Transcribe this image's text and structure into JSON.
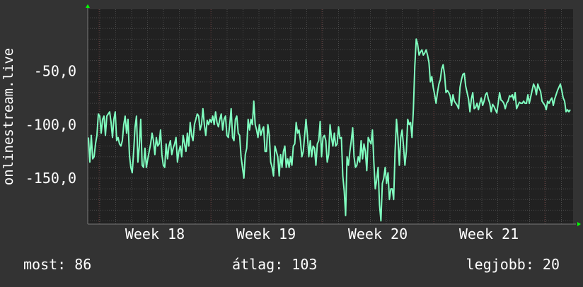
{
  "chart_data": {
    "type": "line",
    "ylabel": "onlinestream.live",
    "ylim": [
      -193,
      8
    ],
    "y_ticks": [
      -50,
      -100,
      -150
    ],
    "y_tick_labels": [
      "-50,0",
      "-100,0",
      "-150,0"
    ],
    "x_ticks": [
      "Week 18",
      "Week 19",
      "Week 20",
      "Week 21"
    ],
    "grid": true,
    "colors": {
      "background": "#333333",
      "plot_background": "#212121",
      "grid": "#4a4a4a",
      "grid_major": "#5a3030",
      "line": "#80ffc0",
      "axis": "#7a7a7a",
      "arrow": "#00ff00"
    },
    "series": [
      {
        "values": [
          -112,
          -135,
          -110,
          -132,
          -130,
          -118,
          -110,
          -90,
          -92,
          -108,
          -95,
          -92,
          -110,
          -92,
          -90,
          -88,
          -98,
          -112,
          -95,
          -88,
          -115,
          -112,
          -118,
          -120,
          -115,
          -100,
          -92,
          -108,
          -95,
          -128,
          -140,
          -145,
          -125,
          -102,
          -92,
          -135,
          -120,
          -95,
          -138,
          -140,
          -122,
          -140,
          -132,
          -125,
          -118,
          -108,
          -115,
          -128,
          -112,
          -120,
          -118,
          -105,
          -128,
          -138,
          -140,
          -118,
          -132,
          -120,
          -115,
          -128,
          -122,
          -118,
          -112,
          -135,
          -125,
          -120,
          -130,
          -110,
          -118,
          -125,
          -108,
          -120,
          -98,
          -110,
          -115,
          -100,
          -95,
          -90,
          -92,
          -105,
          -100,
          -85,
          -100,
          -110,
          -96,
          -100,
          -95,
          -98,
          -92,
          -100,
          -88,
          -98,
          -102,
          -95,
          -90,
          -105,
          -95,
          -92,
          -110,
          -112,
          -100,
          -85,
          -112,
          -115,
          -95,
          -92,
          -108,
          -110,
          -130,
          -140,
          -150,
          -128,
          -122,
          -95,
          -105,
          -95,
          -100,
          -78,
          -100,
          -105,
          -112,
          -100,
          -110,
          -105,
          -102,
          -125,
          -125,
          -100,
          -110,
          -135,
          -140,
          -148,
          -120,
          -125,
          -130,
          -148,
          -128,
          -140,
          -125,
          -120,
          -140,
          -132,
          -140,
          -130,
          -138,
          -120,
          -118,
          -98,
          -108,
          -105,
          -115,
          -130,
          -125,
          -110,
          -95,
          -110,
          -130,
          -115,
          -130,
          -120,
          -122,
          -138,
          -118,
          -115,
          -97,
          -130,
          -112,
          -110,
          -115,
          -135,
          -128,
          -100,
          -112,
          -120,
          -108,
          -120,
          -118,
          -102,
          -113,
          -112,
          -148,
          -162,
          -185,
          -130,
          -138,
          -125,
          -115,
          -103,
          -130,
          -140,
          -138,
          -130,
          -135,
          -115,
          -132,
          -118,
          -125,
          -143,
          -112,
          -115,
          -118,
          -105,
          -135,
          -160,
          -152,
          -140,
          -175,
          -190,
          -155,
          -150,
          -140,
          -155,
          -145,
          -170,
          -160,
          -160,
          -170,
          -125,
          -95,
          -112,
          -138,
          -112,
          -105,
          -120,
          -138,
          -125,
          -95,
          -100,
          -98,
          -112,
          -85,
          -45,
          -20,
          -25,
          -35,
          -32,
          -30,
          -35,
          -33,
          -30,
          -35,
          -42,
          -60,
          -55,
          -65,
          -72,
          -80,
          -70,
          -62,
          -58,
          -48,
          -44,
          -53,
          -70,
          -68,
          -70,
          -73,
          -82,
          -72,
          -78,
          -80,
          -82,
          -85,
          -65,
          -58,
          -53,
          -52,
          -64,
          -70,
          -76,
          -88,
          -76,
          -70,
          -85,
          -84,
          -80,
          -86,
          -80,
          -75,
          -82,
          -78,
          -72,
          -70,
          -76,
          -80,
          -88,
          -81,
          -83,
          -86,
          -89,
          -80,
          -70,
          -77,
          -78,
          -80,
          -85,
          -80,
          -78,
          -73,
          -74,
          -72,
          -77,
          -70,
          -85,
          -82,
          -79,
          -80,
          -80,
          -78,
          -80,
          -80,
          -72,
          -80,
          -74,
          -68,
          -62,
          -65,
          -72,
          -62,
          -66,
          -69,
          -78,
          -80,
          -82,
          -86,
          -78,
          -80,
          -77,
          -75,
          -82,
          -76,
          -72,
          -68,
          -65,
          -62,
          -68,
          -75,
          -78,
          -88,
          -86,
          -88,
          -86
        ]
      }
    ]
  },
  "stats": {
    "now": "most: 86",
    "avg": "átlag: 103",
    "best": "legjobb: 20"
  }
}
